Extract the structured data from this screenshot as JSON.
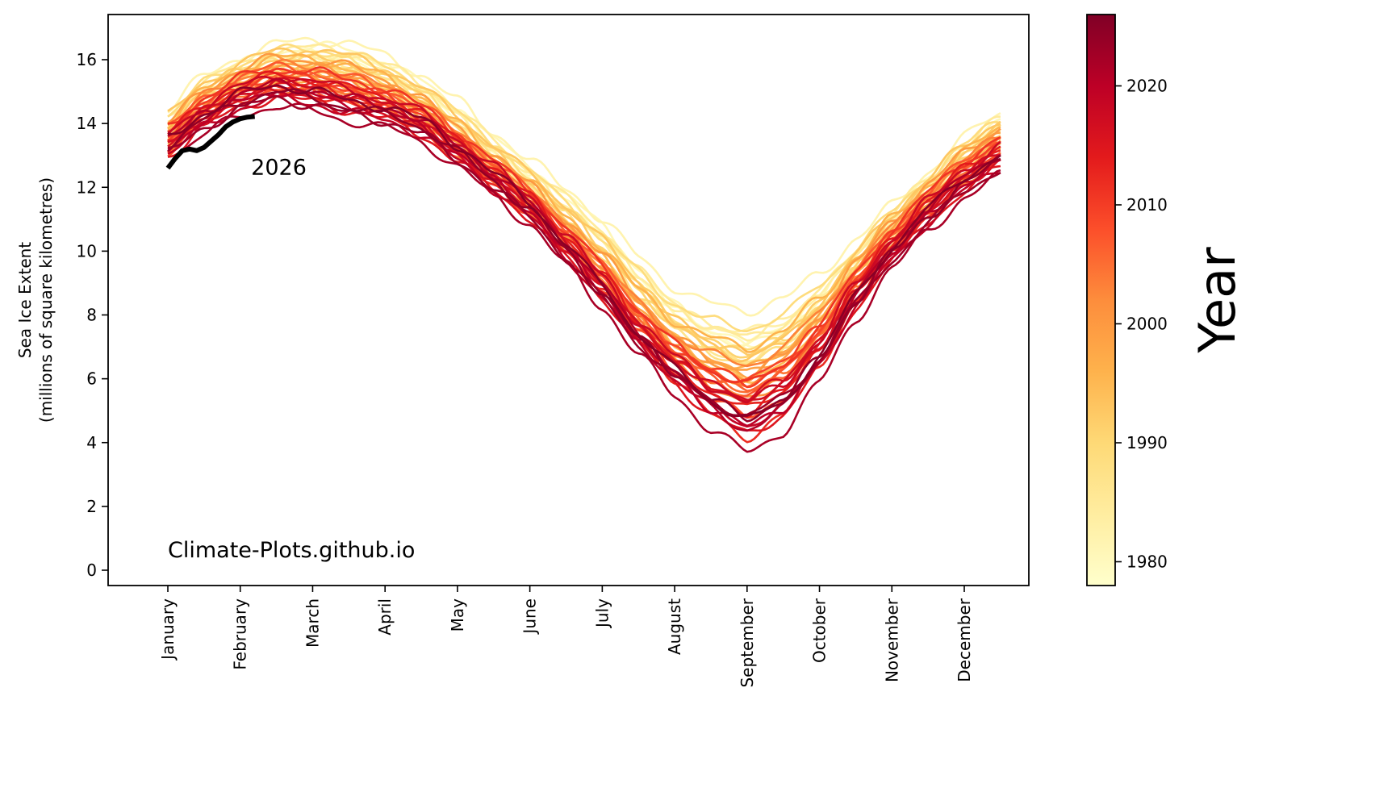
{
  "chart_data": {
    "type": "line",
    "title": "",
    "xlabel": "",
    "ylabel_line1": "Sea Ice Extent",
    "ylabel_line2": "(millions of square kilometres)",
    "ylim": [
      -0.45,
      17.4
    ],
    "yticks": [
      0,
      2,
      4,
      6,
      8,
      10,
      12,
      14,
      16
    ],
    "xticks": [
      "January",
      "February",
      "March",
      "April",
      "May",
      "June",
      "July",
      "August",
      "September",
      "October",
      "November",
      "December"
    ],
    "x_unit": "month (1 = January 1st)",
    "grid": false,
    "colormap": "YlOrRd",
    "colorbar": {
      "label": "Year",
      "range": [
        1978,
        2026
      ],
      "ticks": [
        1980,
        1990,
        2000,
        2010,
        2020
      ],
      "stops": [
        "#ffffcc",
        "#ffeda0",
        "#fed976",
        "#feb24c",
        "#fd8d3c",
        "#fc4e2a",
        "#e31a1c",
        "#bd0026",
        "#800026"
      ]
    },
    "climatology_x": [
      1.0,
      1.5,
      2.0,
      2.5,
      3.0,
      3.5,
      4.0,
      4.5,
      5.0,
      5.5,
      6.0,
      6.5,
      7.0,
      7.5,
      8.0,
      8.5,
      9.0,
      9.5,
      10.0,
      10.5,
      11.0,
      11.5,
      12.0,
      12.5
    ],
    "series_early_1979": [
      14.2,
      15.2,
      15.8,
      16.2,
      16.4,
      16.3,
      15.9,
      15.3,
      14.5,
      13.5,
      12.6,
      11.8,
      10.8,
      9.6,
      8.5,
      7.8,
      7.5,
      7.9,
      8.8,
      10.0,
      11.1,
      12.2,
      13.3,
      14.1
    ],
    "series_mid_2000": [
      13.6,
      14.7,
      15.3,
      15.7,
      15.6,
      15.4,
      15.0,
      14.4,
      13.5,
      12.6,
      11.7,
      10.6,
      9.5,
      8.2,
      7.1,
      6.4,
      6.0,
      6.6,
      7.8,
      9.3,
      10.6,
      11.7,
      12.7,
      13.5
    ],
    "series_late_2024": [
      13.2,
      14.0,
      14.6,
      14.9,
      14.7,
      14.4,
      14.2,
      13.8,
      13.0,
      12.1,
      11.2,
      9.9,
      8.6,
      7.1,
      6.0,
      5.0,
      4.4,
      5.0,
      6.4,
      8.3,
      9.8,
      11.0,
      12.0,
      12.7
    ],
    "record_low_2012": {
      "x": 9.1,
      "y": 3.4
    },
    "series_highlight": {
      "year": "2026",
      "color": "#000000",
      "x": [
        1.0,
        1.1,
        1.2,
        1.3,
        1.4,
        1.5,
        1.6,
        1.7,
        1.8,
        1.9,
        2.0,
        2.1,
        2.2
      ],
      "values": [
        12.6,
        12.9,
        13.15,
        13.2,
        13.15,
        13.25,
        13.45,
        13.65,
        13.9,
        14.05,
        14.15,
        14.2,
        14.22
      ]
    },
    "annotations": [
      {
        "text": "2026",
        "x": 2.15,
        "y": 12.4
      },
      {
        "text": "Climate-Plots.github.io",
        "x": 1.0,
        "y": 0.4
      }
    ]
  }
}
